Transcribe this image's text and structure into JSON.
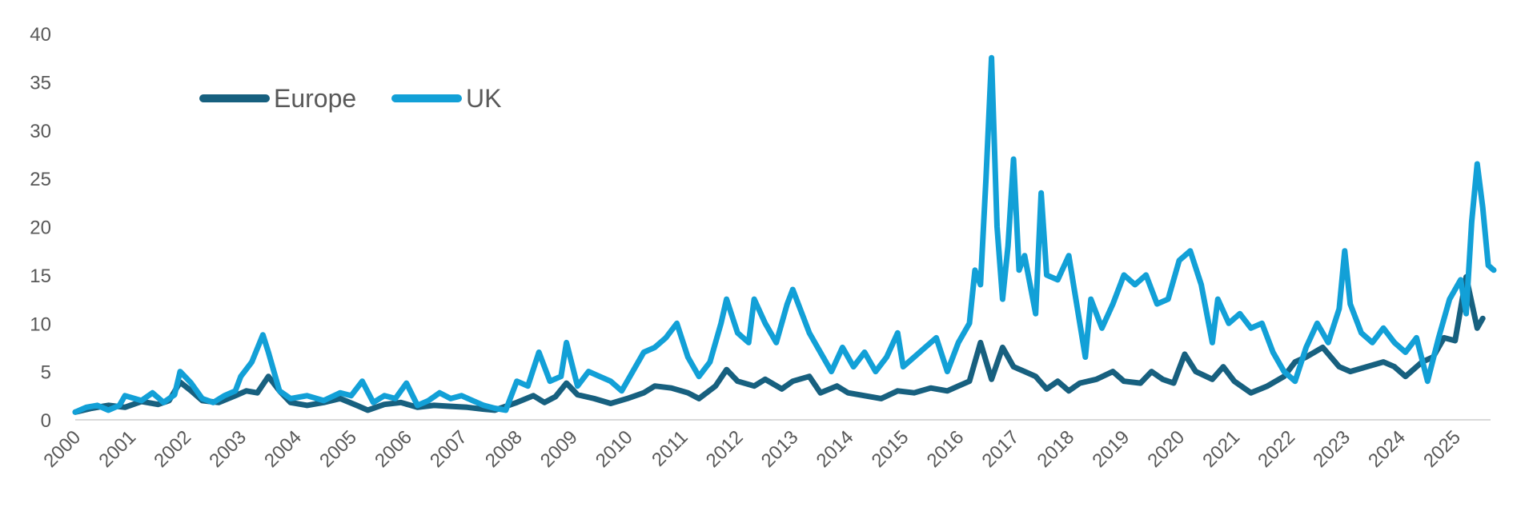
{
  "chart_data": {
    "type": "line",
    "title": "",
    "xlabel": "",
    "ylabel": "",
    "xlim": [
      2000,
      2025.7
    ],
    "ylim": [
      0,
      40
    ],
    "y_ticks": [
      0,
      5,
      10,
      15,
      20,
      25,
      30,
      35,
      40
    ],
    "x_ticks": [
      "2000",
      "2001",
      "2002",
      "2003",
      "2004",
      "2005",
      "2006",
      "2007",
      "2008",
      "2009",
      "2010",
      "2011",
      "2012",
      "2013",
      "2014",
      "2015",
      "2016",
      "2017",
      "2018",
      "2019",
      "2020",
      "2021",
      "2022",
      "2023",
      "2024",
      "2025"
    ],
    "grid": false,
    "legend_position": "top-left",
    "series": [
      {
        "name": "Europe",
        "color": "#17607f",
        "points": [
          [
            2000.0,
            0.8
          ],
          [
            2000.3,
            1.2
          ],
          [
            2000.6,
            1.5
          ],
          [
            2000.9,
            1.3
          ],
          [
            2001.2,
            1.9
          ],
          [
            2001.5,
            1.6
          ],
          [
            2001.7,
            2.0
          ],
          [
            2001.9,
            3.9
          ],
          [
            2002.1,
            3.0
          ],
          [
            2002.3,
            2.0
          ],
          [
            2002.6,
            1.8
          ],
          [
            2002.9,
            2.5
          ],
          [
            2003.1,
            3.0
          ],
          [
            2003.3,
            2.8
          ],
          [
            2003.5,
            4.5
          ],
          [
            2003.7,
            3.0
          ],
          [
            2003.9,
            1.8
          ],
          [
            2004.2,
            1.5
          ],
          [
            2004.5,
            1.8
          ],
          [
            2004.8,
            2.2
          ],
          [
            2005.1,
            1.5
          ],
          [
            2005.3,
            1.0
          ],
          [
            2005.6,
            1.6
          ],
          [
            2005.9,
            1.8
          ],
          [
            2006.2,
            1.3
          ],
          [
            2006.5,
            1.5
          ],
          [
            2006.8,
            1.4
          ],
          [
            2007.1,
            1.3
          ],
          [
            2007.4,
            1.1
          ],
          [
            2007.6,
            1.0
          ],
          [
            2007.8,
            1.4
          ],
          [
            2008.0,
            1.8
          ],
          [
            2008.3,
            2.5
          ],
          [
            2008.5,
            1.8
          ],
          [
            2008.7,
            2.4
          ],
          [
            2008.9,
            3.8
          ],
          [
            2009.1,
            2.6
          ],
          [
            2009.4,
            2.2
          ],
          [
            2009.7,
            1.7
          ],
          [
            2010.0,
            2.2
          ],
          [
            2010.3,
            2.8
          ],
          [
            2010.5,
            3.5
          ],
          [
            2010.8,
            3.3
          ],
          [
            2011.1,
            2.8
          ],
          [
            2011.3,
            2.2
          ],
          [
            2011.6,
            3.5
          ],
          [
            2011.8,
            5.2
          ],
          [
            2012.0,
            4.0
          ],
          [
            2012.3,
            3.5
          ],
          [
            2012.5,
            4.2
          ],
          [
            2012.8,
            3.2
          ],
          [
            2013.0,
            4.0
          ],
          [
            2013.3,
            4.5
          ],
          [
            2013.5,
            2.8
          ],
          [
            2013.8,
            3.5
          ],
          [
            2014.0,
            2.8
          ],
          [
            2014.3,
            2.5
          ],
          [
            2014.6,
            2.2
          ],
          [
            2014.9,
            3.0
          ],
          [
            2015.2,
            2.8
          ],
          [
            2015.5,
            3.3
          ],
          [
            2015.8,
            3.0
          ],
          [
            2016.0,
            3.5
          ],
          [
            2016.2,
            4.0
          ],
          [
            2016.4,
            8.0
          ],
          [
            2016.6,
            4.2
          ],
          [
            2016.8,
            7.5
          ],
          [
            2017.0,
            5.5
          ],
          [
            2017.2,
            5.0
          ],
          [
            2017.4,
            4.5
          ],
          [
            2017.6,
            3.2
          ],
          [
            2017.8,
            4.0
          ],
          [
            2018.0,
            3.0
          ],
          [
            2018.2,
            3.8
          ],
          [
            2018.5,
            4.2
          ],
          [
            2018.8,
            5.0
          ],
          [
            2019.0,
            4.0
          ],
          [
            2019.3,
            3.8
          ],
          [
            2019.5,
            5.0
          ],
          [
            2019.7,
            4.2
          ],
          [
            2019.9,
            3.8
          ],
          [
            2020.1,
            6.8
          ],
          [
            2020.3,
            5.0
          ],
          [
            2020.6,
            4.2
          ],
          [
            2020.8,
            5.5
          ],
          [
            2021.0,
            4.0
          ],
          [
            2021.3,
            2.8
          ],
          [
            2021.6,
            3.5
          ],
          [
            2021.9,
            4.5
          ],
          [
            2022.1,
            6.0
          ],
          [
            2022.3,
            6.5
          ],
          [
            2022.6,
            7.5
          ],
          [
            2022.9,
            5.5
          ],
          [
            2023.1,
            5.0
          ],
          [
            2023.4,
            5.5
          ],
          [
            2023.7,
            6.0
          ],
          [
            2023.9,
            5.5
          ],
          [
            2024.1,
            4.5
          ],
          [
            2024.4,
            6.0
          ],
          [
            2024.6,
            6.5
          ],
          [
            2024.8,
            8.5
          ],
          [
            2025.0,
            8.2
          ],
          [
            2025.2,
            14.8
          ],
          [
            2025.4,
            9.5
          ],
          [
            2025.5,
            10.5
          ]
        ]
      },
      {
        "name": "UK",
        "color": "#12a0d7",
        "points": [
          [
            2000.0,
            0.8
          ],
          [
            2000.2,
            1.3
          ],
          [
            2000.4,
            1.5
          ],
          [
            2000.6,
            1.0
          ],
          [
            2000.8,
            1.5
          ],
          [
            2000.9,
            2.5
          ],
          [
            2001.2,
            2.0
          ],
          [
            2001.4,
            2.8
          ],
          [
            2001.6,
            1.8
          ],
          [
            2001.8,
            2.6
          ],
          [
            2001.9,
            5.0
          ],
          [
            2002.1,
            3.8
          ],
          [
            2002.3,
            2.2
          ],
          [
            2002.5,
            1.8
          ],
          [
            2002.7,
            2.5
          ],
          [
            2002.9,
            3.0
          ],
          [
            2003.0,
            4.5
          ],
          [
            2003.2,
            6.0
          ],
          [
            2003.4,
            8.8
          ],
          [
            2003.5,
            7.0
          ],
          [
            2003.7,
            3.0
          ],
          [
            2003.9,
            2.2
          ],
          [
            2004.2,
            2.5
          ],
          [
            2004.5,
            2.0
          ],
          [
            2004.8,
            2.8
          ],
          [
            2005.0,
            2.5
          ],
          [
            2005.2,
            4.0
          ],
          [
            2005.4,
            1.8
          ],
          [
            2005.6,
            2.5
          ],
          [
            2005.8,
            2.2
          ],
          [
            2006.0,
            3.8
          ],
          [
            2006.2,
            1.5
          ],
          [
            2006.4,
            2.0
          ],
          [
            2006.6,
            2.8
          ],
          [
            2006.8,
            2.2
          ],
          [
            2007.0,
            2.5
          ],
          [
            2007.2,
            2.0
          ],
          [
            2007.4,
            1.5
          ],
          [
            2007.6,
            1.2
          ],
          [
            2007.8,
            1.0
          ],
          [
            2008.0,
            4.0
          ],
          [
            2008.2,
            3.5
          ],
          [
            2008.4,
            7.0
          ],
          [
            2008.6,
            4.0
          ],
          [
            2008.8,
            4.5
          ],
          [
            2008.9,
            8.0
          ],
          [
            2009.1,
            3.5
          ],
          [
            2009.3,
            5.0
          ],
          [
            2009.5,
            4.5
          ],
          [
            2009.7,
            4.0
          ],
          [
            2009.9,
            3.0
          ],
          [
            2010.1,
            5.0
          ],
          [
            2010.3,
            7.0
          ],
          [
            2010.5,
            7.5
          ],
          [
            2010.7,
            8.5
          ],
          [
            2010.9,
            10.0
          ],
          [
            2011.1,
            6.5
          ],
          [
            2011.3,
            4.5
          ],
          [
            2011.5,
            6.0
          ],
          [
            2011.7,
            10.0
          ],
          [
            2011.8,
            12.5
          ],
          [
            2012.0,
            9.0
          ],
          [
            2012.2,
            8.0
          ],
          [
            2012.3,
            12.5
          ],
          [
            2012.5,
            10.0
          ],
          [
            2012.7,
            8.0
          ],
          [
            2012.9,
            12.0
          ],
          [
            2013.0,
            13.5
          ],
          [
            2013.1,
            12.0
          ],
          [
            2013.3,
            9.0
          ],
          [
            2013.5,
            7.0
          ],
          [
            2013.7,
            5.0
          ],
          [
            2013.9,
            7.5
          ],
          [
            2014.1,
            5.5
          ],
          [
            2014.3,
            7.0
          ],
          [
            2014.5,
            5.0
          ],
          [
            2014.7,
            6.5
          ],
          [
            2014.9,
            9.0
          ],
          [
            2015.0,
            5.5
          ],
          [
            2015.2,
            6.5
          ],
          [
            2015.4,
            7.5
          ],
          [
            2015.6,
            8.5
          ],
          [
            2015.8,
            5.0
          ],
          [
            2016.0,
            8.0
          ],
          [
            2016.2,
            10.0
          ],
          [
            2016.3,
            15.5
          ],
          [
            2016.4,
            14.0
          ],
          [
            2016.5,
            25.0
          ],
          [
            2016.6,
            37.5
          ],
          [
            2016.7,
            20.0
          ],
          [
            2016.8,
            12.5
          ],
          [
            2016.9,
            18.0
          ],
          [
            2017.0,
            27.0
          ],
          [
            2017.1,
            15.5
          ],
          [
            2017.2,
            17.0
          ],
          [
            2017.3,
            14.0
          ],
          [
            2017.4,
            11.0
          ],
          [
            2017.5,
            23.5
          ],
          [
            2017.6,
            15.0
          ],
          [
            2017.8,
            14.5
          ],
          [
            2018.0,
            17.0
          ],
          [
            2018.1,
            13.5
          ],
          [
            2018.3,
            6.5
          ],
          [
            2018.4,
            12.5
          ],
          [
            2018.6,
            9.5
          ],
          [
            2018.8,
            12.0
          ],
          [
            2019.0,
            15.0
          ],
          [
            2019.2,
            14.0
          ],
          [
            2019.4,
            15.0
          ],
          [
            2019.6,
            12.0
          ],
          [
            2019.8,
            12.5
          ],
          [
            2020.0,
            16.5
          ],
          [
            2020.2,
            17.5
          ],
          [
            2020.4,
            14.0
          ],
          [
            2020.6,
            8.0
          ],
          [
            2020.7,
            12.5
          ],
          [
            2020.9,
            10.0
          ],
          [
            2021.1,
            11.0
          ],
          [
            2021.3,
            9.5
          ],
          [
            2021.5,
            10.0
          ],
          [
            2021.7,
            7.0
          ],
          [
            2021.9,
            5.0
          ],
          [
            2022.1,
            4.0
          ],
          [
            2022.3,
            7.5
          ],
          [
            2022.5,
            10.0
          ],
          [
            2022.7,
            8.0
          ],
          [
            2022.9,
            11.5
          ],
          [
            2023.0,
            17.5
          ],
          [
            2023.1,
            12.0
          ],
          [
            2023.3,
            9.0
          ],
          [
            2023.5,
            8.0
          ],
          [
            2023.7,
            9.5
          ],
          [
            2023.9,
            8.0
          ],
          [
            2024.1,
            7.0
          ],
          [
            2024.3,
            8.5
          ],
          [
            2024.5,
            4.0
          ],
          [
            2024.7,
            8.5
          ],
          [
            2024.9,
            12.5
          ],
          [
            2025.0,
            13.5
          ],
          [
            2025.1,
            14.5
          ],
          [
            2025.2,
            11.0
          ],
          [
            2025.3,
            20.5
          ],
          [
            2025.4,
            26.5
          ],
          [
            2025.5,
            22.0
          ],
          [
            2025.6,
            16.0
          ],
          [
            2025.7,
            15.5
          ]
        ]
      }
    ]
  }
}
